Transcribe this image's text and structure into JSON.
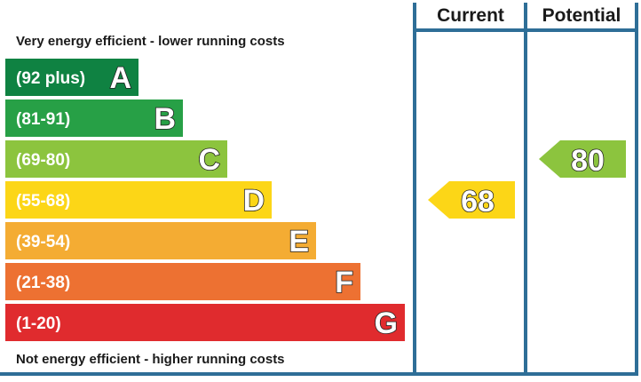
{
  "chart_data": {
    "type": "bar",
    "top_note": "Very energy efficient - lower running costs",
    "bottom_note": "Not energy efficient - higher running costs",
    "columns": {
      "current": "Current",
      "potential": "Potential"
    },
    "bands": [
      {
        "letter": "A",
        "range": "(92 plus)",
        "min": 92,
        "max": 100,
        "color": "#0f8242"
      },
      {
        "letter": "B",
        "range": "(81-91)",
        "min": 81,
        "max": 91,
        "color": "#27a046"
      },
      {
        "letter": "C",
        "range": "(69-80)",
        "min": 69,
        "max": 80,
        "color": "#8cc43e"
      },
      {
        "letter": "D",
        "range": "(55-68)",
        "min": 55,
        "max": 68,
        "color": "#fcd617"
      },
      {
        "letter": "E",
        "range": "(39-54)",
        "min": 39,
        "max": 54,
        "color": "#f4ac33"
      },
      {
        "letter": "F",
        "range": "(21-38)",
        "min": 21,
        "max": 38,
        "color": "#ed7132"
      },
      {
        "letter": "G",
        "range": "(1-20)",
        "min": 1,
        "max": 20,
        "color": "#e02b2e"
      }
    ],
    "current": {
      "value": 68,
      "band": "D",
      "color": "#fcd617"
    },
    "potential": {
      "value": 80,
      "band": "C",
      "color": "#8cc43e"
    },
    "frame_color": "#2e6e97"
  }
}
